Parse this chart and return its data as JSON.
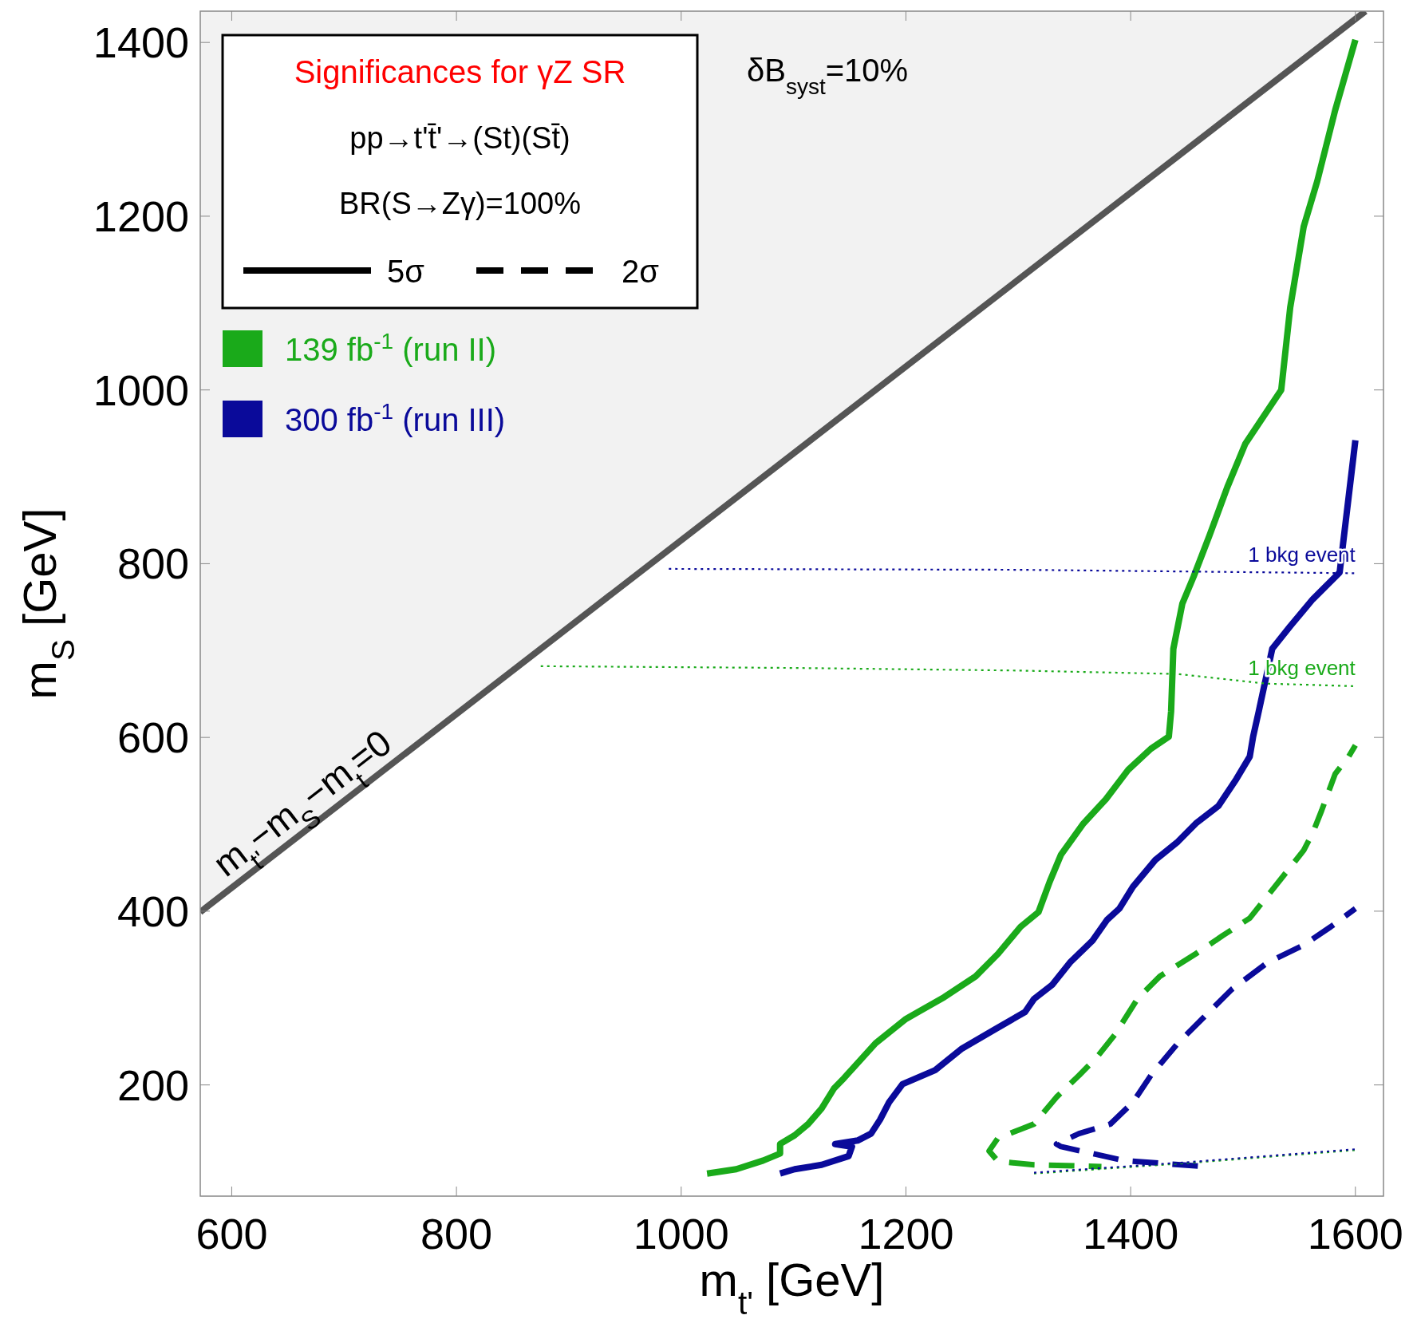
{
  "chart_data": {
    "type": "line",
    "xlabel": "m$_{t'}$ [GeV]",
    "ylabel": "m$_{S}$ [GeV]",
    "legend_title": "Significances for γZ SR",
    "legend": "top left",
    "xlim": [
      572,
      1625
    ],
    "ylim": [
      72,
      1436
    ],
    "xticks": [
      600,
      800,
      1000,
      1200,
      1400,
      1600
    ],
    "yticks": [
      200,
      400,
      600,
      800,
      1000,
      1200,
      1400
    ],
    "series": [
      {
        "name": "139 fb$^{-1}$ (run II)",
        "color": "#1aaa1a",
        "line_style": "solid",
        "x": [
          1023,
          1049,
          1073,
          1088,
          1088,
          1101,
          1113,
          1125,
          1136,
          1145,
          1173,
          1200,
          1234,
          1262,
          1282,
          1302,
          1318,
          1328,
          1338,
          1358,
          1378,
          1398,
          1418,
          1434,
          1436,
          1438,
          1446,
          1456,
          1470,
          1486,
          1502,
          1534,
          1542,
          1554,
          1566,
          1582,
          1600
        ],
        "values": [
          98,
          103,
          113,
          121,
          132,
          142,
          155,
          173,
          196,
          208,
          248,
          276,
          301,
          325,
          351,
          382,
          399,
          434,
          465,
          501,
          529,
          563,
          587,
          601,
          630,
          702,
          754,
          785,
          832,
          888,
          938,
          1000,
          1095,
          1188,
          1240,
          1322,
          1403
        ]
      },
      {
        "name": "300 fb$^{-1}$ (run III)",
        "color": "#0a0a9a",
        "line_style": "solid",
        "x": [
          1088,
          1101,
          1125,
          1149,
          1152,
          1137,
          1157,
          1169,
          1177,
          1185,
          1197,
          1226,
          1250,
          1278,
          1306,
          1314,
          1330,
          1346,
          1366,
          1379,
          1390,
          1402,
          1422,
          1442,
          1458,
          1478,
          1494,
          1506,
          1509,
          1514,
          1526,
          1542,
          1562,
          1586,
          1600
        ],
        "values": [
          98,
          103,
          108,
          118,
          129,
          132,
          136,
          144,
          160,
          180,
          201,
          217,
          242,
          263,
          284,
          299,
          315,
          341,
          366,
          390,
          403,
          428,
          459,
          480,
          501,
          521,
          552,
          578,
          601,
          630,
          702,
          728,
          759,
          790,
          942
        ]
      },
      {
        "color": "#1aaa1a",
        "line_style": "dashed",
        "x": [
          1374,
          1314,
          1282,
          1274,
          1282,
          1302,
          1314,
          1334,
          1354,
          1370,
          1386,
          1406,
          1426,
          1458,
          1482,
          1506,
          1522,
          1538,
          1554,
          1562,
          1570,
          1582,
          1594,
          1600
        ],
        "values": [
          106,
          108,
          112,
          124,
          139,
          149,
          155,
          186,
          211,
          232,
          258,
          299,
          325,
          351,
          372,
          392,
          418,
          444,
          470,
          490,
          516,
          558,
          578,
          591
        ]
      },
      {
        "color": "#0a0a9a",
        "line_style": "dashed",
        "x": [
          1466,
          1394,
          1338,
          1334,
          1354,
          1382,
          1402,
          1418,
          1442,
          1466,
          1490,
          1522,
          1554,
          1578,
          1600
        ],
        "values": [
          106,
          113,
          129,
          132,
          144,
          155,
          180,
          211,
          248,
          279,
          310,
          341,
          361,
          382,
          403
        ]
      },
      {
        "color": "#1aaa1a",
        "line_style": "dotted",
        "x": [
          875,
          1100,
          1300,
          1442,
          1520,
          1600
        ],
        "values": [
          682,
          680,
          677,
          673,
          662,
          659
        ]
      },
      {
        "color": "#0a0a9a",
        "line_style": "dotted",
        "x": [
          989,
          1300,
          1600
        ],
        "values": [
          794,
          793,
          789
        ]
      },
      {
        "color": "#1aaa1a",
        "line_style": "dotted",
        "x": [
          1314,
          1450,
          1600
        ],
        "values": [
          98,
          110,
          125
        ]
      },
      {
        "color": "#0a0a9a",
        "line_style": "dotted",
        "x": [
          1314,
          1450,
          1600
        ],
        "values": [
          99,
          111,
          126
        ]
      },
      {
        "color": "#555555",
        "line_style": "solid",
        "x": [
          572,
          1609
        ],
        "values": [
          399,
          1436
        ],
        "lower": [
          399,
          1436
        ],
        "upper": [
          1436,
          1436
        ]
      }
    ],
    "annotations": [
      "pp→t't̄'→(St)(St̄)",
      "BR(S→Zγ)=100%",
      "5σ",
      "2σ",
      "δB$_{syst}$=10%",
      "m$_{t'}$−m$_{S}$−m$_{t}$=0",
      {
        "text": "1 bkg event",
        "x": 1600,
        "y": 789
      },
      {
        "text": "1 bkg event",
        "x": 1600,
        "y": 659
      }
    ]
  }
}
